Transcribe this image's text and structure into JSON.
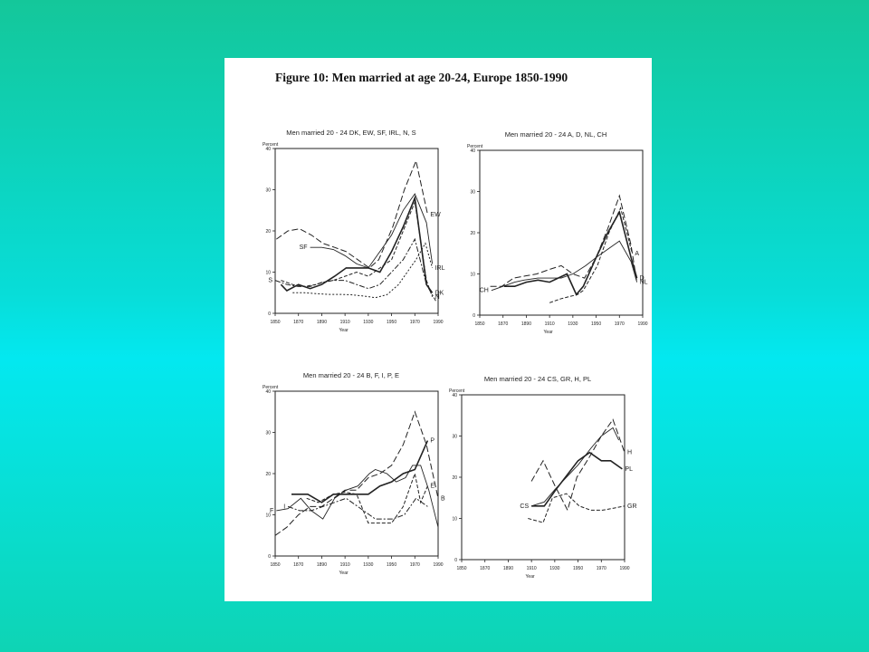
{
  "figure": {
    "title": "Figure 10: Men married at age 20-24, Europe 1850-1990"
  },
  "chart_data": [
    {
      "type": "line",
      "title": "Men married 20 - 24 DK, EW, SF, IRL, N, S",
      "ylabel": "Percent",
      "xlabel": "Year",
      "xlim": [
        1850,
        1990
      ],
      "ylim": [
        0,
        40
      ],
      "x_ticks": [
        "1850",
        "1870",
        "1890",
        "1910",
        "1930",
        "1950",
        "1970",
        "1990"
      ],
      "y_ticks": [
        "0",
        "10",
        "20",
        "30",
        "40"
      ],
      "series": [
        {
          "name": "EW",
          "x": [
            1851,
            1861,
            1871,
            1881,
            1891,
            1901,
            1911,
            1921,
            1931,
            1939,
            1951,
            1961,
            1971,
            1981
          ],
          "y": [
            18,
            20,
            20.5,
            19,
            17,
            16,
            15,
            13,
            11,
            13,
            21,
            30,
            37,
            24
          ]
        },
        {
          "name": "SF",
          "x": [
            1880,
            1890,
            1900,
            1910,
            1920,
            1930,
            1940,
            1950,
            1960,
            1970,
            1980,
            1985
          ],
          "y": [
            16,
            16,
            15.5,
            14,
            12,
            11,
            15,
            19,
            25,
            29,
            22,
            12
          ]
        },
        {
          "name": "DK",
          "x": [
            1855,
            1860,
            1870,
            1880,
            1890,
            1901,
            1911,
            1921,
            1930,
            1940,
            1950,
            1960,
            1970,
            1980,
            1985
          ],
          "y": [
            7,
            5.5,
            7,
            6,
            7,
            9,
            11,
            11,
            11,
            10,
            15,
            21,
            28,
            7,
            5
          ]
        },
        {
          "name": "N",
          "x": [
            1855,
            1865,
            1875,
            1885,
            1891,
            1900,
            1910,
            1920,
            1930,
            1940,
            1950,
            1960,
            1970,
            1980,
            1985
          ],
          "y": [
            8,
            7,
            6.5,
            7,
            7.5,
            8,
            9,
            10,
            9,
            11,
            13,
            20,
            27,
            8,
            4
          ]
        },
        {
          "name": "S",
          "x": [
            1850,
            1860,
            1870,
            1880,
            1890,
            1900,
            1910,
            1920,
            1930,
            1940,
            1950,
            1960,
            1970,
            1980,
            1988
          ],
          "y": [
            8,
            7,
            6.5,
            6.5,
            7.5,
            8,
            8,
            7,
            6,
            7,
            10,
            13,
            18,
            7,
            3
          ]
        },
        {
          "name": "IRL",
          "x": [
            1865,
            1875,
            1885,
            1895,
            1905,
            1915,
            1926,
            1936,
            1946,
            1956,
            1966,
            1971,
            1979,
            1985
          ],
          "y": [
            5,
            5,
            4.8,
            4.6,
            4.6,
            4.5,
            4.2,
            3.8,
            4.5,
            7,
            11,
            13,
            17,
            11
          ]
        }
      ]
    },
    {
      "type": "line",
      "title": "Men married 20 - 24 A, D, NL, CH",
      "ylabel": "Percent",
      "xlabel": "Year",
      "xlim": [
        1850,
        1990
      ],
      "ylim": [
        0,
        40
      ],
      "x_ticks": [
        "1850",
        "1870",
        "1890",
        "1910",
        "1930",
        "1950",
        "1970",
        "1990"
      ],
      "y_ticks": [
        "0",
        "10",
        "20",
        "30",
        "40"
      ],
      "series": [
        {
          "name": "NL",
          "x": [
            1859,
            1869,
            1879,
            1889,
            1899,
            1909,
            1920,
            1930,
            1940,
            1950,
            1960,
            1970,
            1980,
            1985
          ],
          "y": [
            7,
            7,
            9,
            9.5,
            10,
            11,
            12,
            10,
            9,
            14,
            21,
            29,
            17,
            8
          ]
        },
        {
          "name": "CH",
          "x": [
            1860,
            1870,
            1880,
            1888,
            1900,
            1910,
            1920,
            1930,
            1941,
            1950,
            1960,
            1970,
            1980,
            1985
          ],
          "y": [
            6,
            7,
            8,
            8.5,
            9,
            9,
            9,
            10,
            12,
            14,
            16,
            18,
            13,
            8
          ]
        },
        {
          "name": "D",
          "x": [
            1871,
            1880,
            1890,
            1900,
            1910,
            1925,
            1933,
            1939,
            1950,
            1960,
            1970,
            1980,
            1985
          ],
          "y": [
            7,
            7,
            8,
            8.5,
            8,
            10,
            5,
            7,
            14,
            20,
            25,
            14,
            9
          ]
        },
        {
          "name": "A",
          "x": [
            1910,
            1920,
            1934,
            1939,
            1951,
            1961,
            1971,
            1981
          ],
          "y": [
            3,
            4,
            5,
            6,
            12,
            20,
            26,
            15
          ]
        }
      ]
    },
    {
      "type": "line",
      "title": "Men married 20 - 24 B, F, I, P, E",
      "ylabel": "Percent",
      "xlabel": "Year",
      "xlim": [
        1850,
        1990
      ],
      "ylim": [
        0,
        40
      ],
      "x_ticks": [
        "1850",
        "1870",
        "1890",
        "1910",
        "1930",
        "1950",
        "1970",
        "1990"
      ],
      "y_ticks": [
        "0",
        "10",
        "20",
        "30",
        "40"
      ],
      "series": [
        {
          "name": "B",
          "x": [
            1850,
            1860,
            1870,
            1880,
            1890,
            1900,
            1910,
            1920,
            1930,
            1940,
            1950,
            1960,
            1970,
            1980,
            1990
          ],
          "y": [
            5,
            7,
            10,
            12,
            12,
            14,
            16,
            16,
            19,
            20,
            22,
            27,
            35,
            27,
            14
          ]
        },
        {
          "name": "F",
          "x": [
            1851,
            1861,
            1872,
            1881,
            1891,
            1901,
            1911,
            1921,
            1931,
            1936,
            1946,
            1954,
            1962,
            1968,
            1975,
            1982,
            1990
          ],
          "y": [
            11,
            11.5,
            14,
            11,
            9,
            14,
            16,
            17,
            20,
            21,
            20,
            18,
            19,
            22,
            22,
            16,
            7
          ]
        },
        {
          "name": "P",
          "x": [
            1864,
            1878,
            1890,
            1900,
            1911,
            1920,
            1930,
            1940,
            1950,
            1960,
            1970,
            1981
          ],
          "y": [
            15,
            15,
            13,
            15,
            15,
            15,
            15,
            17,
            18,
            20,
            21,
            28
          ]
        },
        {
          "name": "E",
          "x": [
            1877,
            1887,
            1900,
            1910,
            1920,
            1930,
            1940,
            1950,
            1960,
            1970,
            1975,
            1981
          ],
          "y": [
            14,
            13,
            15,
            15.5,
            15,
            8,
            8,
            8,
            12,
            20,
            13,
            17
          ]
        },
        {
          "name": "I",
          "x": [
            1861,
            1871,
            1881,
            1891,
            1901,
            1911,
            1921,
            1931,
            1936,
            1951,
            1961,
            1971,
            1981
          ],
          "y": [
            12,
            11,
            11,
            12,
            13,
            14,
            12,
            10,
            9,
            9,
            10,
            14,
            12
          ]
        }
      ]
    },
    {
      "type": "line",
      "title": "Men married 20 - 24 CS, GR, H, PL",
      "ylabel": "Percent",
      "xlabel": "Year",
      "xlim": [
        1850,
        1990
      ],
      "ylim": [
        0,
        40
      ],
      "x_ticks": [
        "1850",
        "1870",
        "1890",
        "1910",
        "1930",
        "1950",
        "1970",
        "1990"
      ],
      "y_ticks": [
        "0",
        "10",
        "20",
        "30",
        "40"
      ],
      "series": [
        {
          "name": "H",
          "x": [
            1910,
            1920,
            1930,
            1941,
            1949,
            1960,
            1970,
            1980,
            1990
          ],
          "y": [
            19,
            24,
            18,
            12,
            20,
            25,
            30,
            34,
            26
          ]
        },
        {
          "name": "CS",
          "x": [
            1910,
            1921,
            1930,
            1950,
            1961,
            1970,
            1980,
            1985
          ],
          "y": [
            13,
            14,
            17,
            23,
            27,
            30,
            32,
            29
          ]
        },
        {
          "name": "PL",
          "x": [
            1910,
            1921,
            1931,
            1950,
            1960,
            1970,
            1978,
            1988
          ],
          "y": [
            13,
            13,
            17,
            24,
            26,
            24,
            24,
            22
          ]
        },
        {
          "name": "GR",
          "x": [
            1907,
            1920,
            1928,
            1940,
            1951,
            1961,
            1971,
            1981,
            1990
          ],
          "y": [
            10,
            9,
            15,
            16,
            13,
            12,
            12,
            12.5,
            13
          ]
        }
      ]
    }
  ]
}
